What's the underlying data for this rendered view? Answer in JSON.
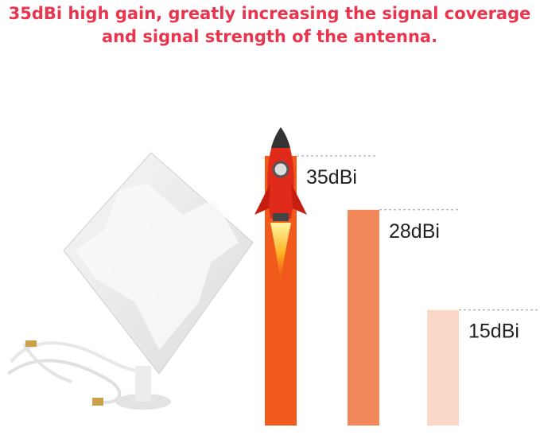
{
  "chart_data": {
    "type": "bar",
    "title_lines": [
      "35dBi high gain, greatly increasing the signal coverage",
      "and signal strength of the antenna."
    ],
    "categories": [
      null,
      null,
      null
    ],
    "values": [
      35,
      28,
      15
    ],
    "value_labels": [
      "35dBi",
      "28dBi",
      "15dBi"
    ],
    "colors": [
      "#f05a1a",
      "#f2875a",
      "#fad7c7"
    ]
  }
}
